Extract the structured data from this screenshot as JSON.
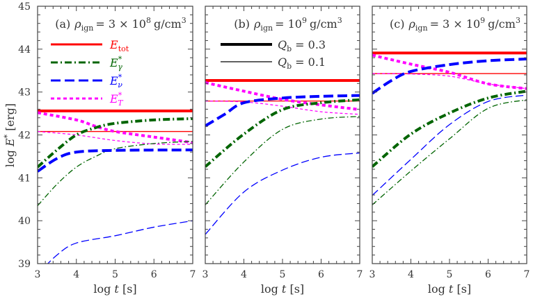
{
  "chart_data": {
    "type": "line",
    "x_axis": {
      "label_pre": "log ",
      "label_var": "t",
      "label_post": " [s]",
      "range": [
        3,
        7
      ],
      "ticks": [
        "3",
        "4",
        "5",
        "6",
        "7"
      ]
    },
    "y_axis": {
      "label_pre": "log ",
      "label_var": "E",
      "label_sup": "*",
      "label_post": " [erg]",
      "range": [
        39,
        45
      ],
      "ticks": [
        "39",
        "40",
        "41",
        "42",
        "43",
        "44",
        "45"
      ]
    },
    "grid": false,
    "colors": {
      "E_tot": "#ff0000",
      "E_gamma": "#006400",
      "E_nu": "#0000ff",
      "E_T": "#ff00ff"
    },
    "legend_series": [
      {
        "key": "E_tot",
        "main": "E",
        "sub": "tot",
        "sup": ""
      },
      {
        "key": "E_gamma",
        "main": "E",
        "sub": "γ",
        "sup": "*"
      },
      {
        "key": "E_nu",
        "main": "E",
        "sub": "ν",
        "sup": "*"
      },
      {
        "key": "E_T",
        "main": "E",
        "sub": "T",
        "sup": "*"
      }
    ],
    "legend_widths": [
      {
        "label": "Q",
        "sub": "b",
        "value": "= 0.3",
        "style": "thick"
      },
      {
        "label": "Q",
        "sub": "b",
        "value": "= 0.1",
        "style": "thin"
      }
    ],
    "panels": [
      {
        "tag": "(a)",
        "rho": "ρ",
        "rho_sub": "ign",
        "value": "= 3 × 10",
        "exp": "8",
        "unit": "g/cm",
        "unit_exp": "3",
        "series": [
          {
            "key": "E_tot",
            "Qb": 0.3,
            "x": [
              3,
              7
            ],
            "y": [
              42.56,
              42.56
            ]
          },
          {
            "key": "E_tot",
            "Qb": 0.1,
            "x": [
              3,
              7
            ],
            "y": [
              42.08,
              42.08
            ]
          },
          {
            "key": "E_T",
            "Qb": 0.3,
            "x": [
              3,
              4,
              4.5,
              5,
              6,
              7
            ],
            "y": [
              42.52,
              42.35,
              42.2,
              42.08,
              41.95,
              41.82
            ]
          },
          {
            "key": "E_T",
            "Qb": 0.1,
            "x": [
              3,
              4,
              5,
              6,
              7
            ],
            "y": [
              42.08,
              42.0,
              41.87,
              41.79,
              41.78
            ]
          },
          {
            "key": "E_gamma",
            "Qb": 0.3,
            "x": [
              3,
              3.5,
              4,
              4.5,
              5,
              6,
              7
            ],
            "y": [
              41.25,
              41.65,
              42.0,
              42.17,
              42.27,
              42.35,
              42.38
            ]
          },
          {
            "key": "E_gamma",
            "Qb": 0.1,
            "x": [
              3,
              3.5,
              4,
              4.5,
              5,
              6,
              7
            ],
            "y": [
              40.35,
              40.85,
              41.25,
              41.5,
              41.68,
              41.8,
              41.85
            ]
          },
          {
            "key": "E_nu",
            "Qb": 0.3,
            "x": [
              3,
              3.5,
              4,
              5,
              7
            ],
            "y": [
              41.15,
              41.45,
              41.6,
              41.64,
              41.65
            ]
          },
          {
            "key": "E_nu",
            "Qb": 0.1,
            "x": [
              3,
              3.5,
              4,
              5,
              6,
              7
            ],
            "y": [
              38.75,
              39.2,
              39.48,
              39.65,
              39.85,
              40.0
            ]
          }
        ]
      },
      {
        "tag": "(b)",
        "rho": "ρ",
        "rho_sub": "ign",
        "value": "= 10",
        "exp": "9",
        "unit": "g/cm",
        "unit_exp": "3",
        "series": [
          {
            "key": "E_tot",
            "Qb": 0.3,
            "x": [
              3,
              7
            ],
            "y": [
              43.27,
              43.27
            ]
          },
          {
            "key": "E_tot",
            "Qb": 0.1,
            "x": [
              3,
              7
            ],
            "y": [
              42.79,
              42.79
            ]
          },
          {
            "key": "E_T",
            "Qb": 0.3,
            "x": [
              3,
              4,
              5,
              6,
              7
            ],
            "y": [
              43.22,
              43.02,
              42.83,
              42.7,
              42.59
            ]
          },
          {
            "key": "E_T",
            "Qb": 0.1,
            "x": [
              3,
              4,
              5,
              6,
              7
            ],
            "y": [
              42.79,
              42.77,
              42.67,
              42.54,
              42.48
            ]
          },
          {
            "key": "E_gamma",
            "Qb": 0.3,
            "x": [
              3,
              4,
              5,
              6,
              7
            ],
            "y": [
              41.26,
              42.02,
              42.59,
              42.75,
              42.82
            ]
          },
          {
            "key": "E_gamma",
            "Qb": 0.1,
            "x": [
              3,
              4,
              5,
              6,
              7
            ],
            "y": [
              40.37,
              41.37,
              42.13,
              42.37,
              42.43
            ]
          },
          {
            "key": "E_nu",
            "Qb": 0.3,
            "x": [
              3,
              3.5,
              4,
              5,
              6,
              7
            ],
            "y": [
              42.21,
              42.48,
              42.75,
              42.86,
              42.9,
              42.92
            ]
          },
          {
            "key": "E_nu",
            "Qb": 0.1,
            "x": [
              3,
              4,
              5,
              6,
              7
            ],
            "y": [
              39.68,
              40.67,
              41.18,
              41.48,
              41.58
            ]
          }
        ]
      },
      {
        "tag": "(c)",
        "rho": "ρ",
        "rho_sub": "ign",
        "value": "= 3 × 10",
        "exp": "9",
        "unit": "g/cm",
        "unit_exp": "3",
        "series": [
          {
            "key": "E_tot",
            "Qb": 0.3,
            "x": [
              3,
              7
            ],
            "y": [
              43.91,
              43.91
            ]
          },
          {
            "key": "E_tot",
            "Qb": 0.1,
            "x": [
              3,
              7
            ],
            "y": [
              43.43,
              43.43
            ]
          },
          {
            "key": "E_T",
            "Qb": 0.3,
            "x": [
              3,
              4,
              5,
              6,
              7
            ],
            "y": [
              43.86,
              43.65,
              43.46,
              43.19,
              43.08
            ]
          },
          {
            "key": "E_T",
            "Qb": 0.1,
            "x": [
              3,
              4,
              5,
              6,
              7
            ],
            "y": [
              43.43,
              43.42,
              43.37,
              43.19,
              43.08
            ]
          },
          {
            "key": "E_nu",
            "Qb": 0.3,
            "x": [
              3,
              3.5,
              4,
              5,
              6,
              7
            ],
            "y": [
              42.97,
              43.27,
              43.48,
              43.64,
              43.73,
              43.77
            ]
          },
          {
            "key": "E_gamma",
            "Qb": 0.3,
            "x": [
              3,
              4,
              5,
              6,
              7
            ],
            "y": [
              41.26,
              42.02,
              42.51,
              42.86,
              43.02
            ]
          },
          {
            "key": "E_nu",
            "Qb": 0.1,
            "x": [
              3,
              4,
              5,
              6,
              7
            ],
            "y": [
              40.59,
              41.43,
              42.24,
              42.78,
              42.93
            ]
          },
          {
            "key": "E_gamma",
            "Qb": 0.1,
            "x": [
              3,
              4,
              5,
              6,
              7
            ],
            "y": [
              40.37,
              41.16,
              41.91,
              42.62,
              42.82
            ]
          }
        ]
      }
    ]
  }
}
